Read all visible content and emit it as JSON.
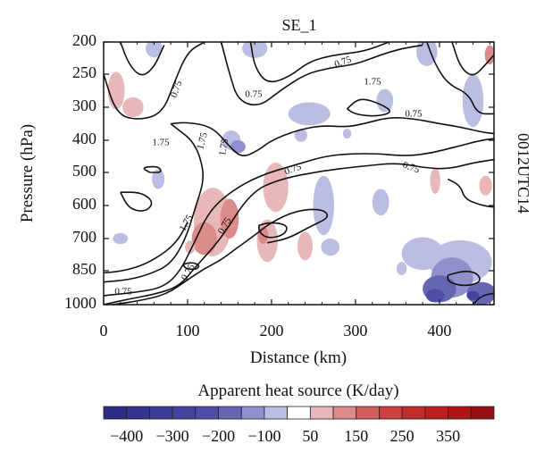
{
  "chart_data": {
    "type": "heatmap",
    "title": "SE_1",
    "side_label": "0012UTC14",
    "xlabel": "Distance (km)",
    "ylabel": "Pressure (hPa)",
    "xlim": [
      0,
      465
    ],
    "ylim": [
      200,
      1000
    ],
    "x_ticks": [
      0,
      100,
      200,
      300,
      400
    ],
    "y_ticks": [
      200,
      250,
      300,
      400,
      500,
      600,
      700,
      850,
      1000
    ],
    "contour_labels": [
      "0.75",
      "0.75",
      "1.75",
      "0.75",
      "1.75",
      "1.75",
      "1.75",
      "0.75",
      "0.75",
      "0.75",
      "1.75",
      "0.75",
      "0.75",
      "0.75"
    ],
    "colorbar": {
      "title": "Apparent heat source (K/day)",
      "tick_labels": [
        "−400",
        "−300",
        "−200",
        "−100",
        "50",
        "150",
        "250",
        "350"
      ],
      "colors": [
        "#2e2d86",
        "#35348e",
        "#3c3b96",
        "#44439e",
        "#4f4ea7",
        "#6766b5",
        "#8f8fcb",
        "#bcbde2",
        "#ffffff",
        "#e8b8b8",
        "#dc8a8a",
        "#d25f5f",
        "#cb4040",
        "#c42b2b",
        "#bd1f1f",
        "#ad1717",
        "#951111"
      ]
    },
    "field_patches": [
      {
        "x": 15,
        "p": 275,
        "w": 20,
        "h": 60,
        "color": "#e8b8b8"
      },
      {
        "x": 35,
        "p": 300,
        "w": 25,
        "h": 40,
        "color": "#e8b8b8"
      },
      {
        "x": 60,
        "p": 210,
        "w": 20,
        "h": 35,
        "color": "#bcbde2"
      },
      {
        "x": 180,
        "p": 210,
        "w": 30,
        "h": 40,
        "color": "#bcbde2"
      },
      {
        "x": 245,
        "p": 320,
        "w": 50,
        "h": 60,
        "color": "#bcbde2"
      },
      {
        "x": 335,
        "p": 290,
        "w": 20,
        "h": 40,
        "color": "#bcbde2"
      },
      {
        "x": 385,
        "p": 215,
        "w": 25,
        "h": 60,
        "color": "#bcbde2"
      },
      {
        "x": 440,
        "p": 290,
        "w": 25,
        "h": 100,
        "color": "#bcbde2"
      },
      {
        "x": 460,
        "p": 220,
        "w": 12,
        "h": 30,
        "color": "#dc8a8a"
      },
      {
        "x": 152,
        "p": 400,
        "w": 22,
        "h": 60,
        "color": "#bcbde2"
      },
      {
        "x": 160,
        "p": 420,
        "w": 18,
        "h": 40,
        "color": "#8f8fcb"
      },
      {
        "x": 235,
        "p": 385,
        "w": 15,
        "h": 40,
        "color": "#bcbde2"
      },
      {
        "x": 290,
        "p": 380,
        "w": 10,
        "h": 30,
        "color": "#bcbde2"
      },
      {
        "x": 65,
        "p": 520,
        "w": 15,
        "h": 60,
        "color": "#bcbde2"
      },
      {
        "x": 205,
        "p": 545,
        "w": 30,
        "h": 150,
        "color": "#e8b8b8"
      },
      {
        "x": 262,
        "p": 600,
        "w": 25,
        "h": 180,
        "color": "#bcbde2"
      },
      {
        "x": 330,
        "p": 590,
        "w": 20,
        "h": 80,
        "color": "#bcbde2"
      },
      {
        "x": 395,
        "p": 525,
        "w": 12,
        "h": 80,
        "color": "#e8b8b8"
      },
      {
        "x": 455,
        "p": 540,
        "w": 15,
        "h": 60,
        "color": "#e8b8b8"
      },
      {
        "x": 130,
        "p": 650,
        "w": 45,
        "h": 230,
        "color": "#e8b8b8"
      },
      {
        "x": 120,
        "p": 700,
        "w": 30,
        "h": 120,
        "color": "#dc8a8a"
      },
      {
        "x": 150,
        "p": 640,
        "w": 22,
        "h": 120,
        "color": "#dc8a8a"
      },
      {
        "x": 103,
        "p": 740,
        "w": 12,
        "h": 60,
        "color": "#e8b8b8"
      },
      {
        "x": 195,
        "p": 710,
        "w": 25,
        "h": 160,
        "color": "#e8b8b8"
      },
      {
        "x": 190,
        "p": 690,
        "w": 12,
        "h": 60,
        "color": "#dc8a8a"
      },
      {
        "x": 240,
        "p": 735,
        "w": 18,
        "h": 120,
        "color": "#e8b8b8"
      },
      {
        "x": 270,
        "p": 740,
        "w": 22,
        "h": 80,
        "color": "#bcbde2"
      },
      {
        "x": 20,
        "p": 700,
        "w": 18,
        "h": 40,
        "color": "#bcbde2"
      },
      {
        "x": 380,
        "p": 770,
        "w": 50,
        "h": 150,
        "color": "#bcbde2"
      },
      {
        "x": 425,
        "p": 810,
        "w": 75,
        "h": 200,
        "color": "#bcbde2"
      },
      {
        "x": 415,
        "p": 880,
        "w": 50,
        "h": 180,
        "color": "#8f8fcb"
      },
      {
        "x": 400,
        "p": 930,
        "w": 40,
        "h": 120,
        "color": "#6766b5"
      },
      {
        "x": 395,
        "p": 960,
        "w": 22,
        "h": 60,
        "color": "#4f4ea7"
      },
      {
        "x": 450,
        "p": 950,
        "w": 35,
        "h": 100,
        "color": "#6766b5"
      },
      {
        "x": 440,
        "p": 960,
        "w": 15,
        "h": 40,
        "color": "#44439e"
      },
      {
        "x": 355,
        "p": 840,
        "w": 12,
        "h": 60,
        "color": "#bcbde2"
      }
    ],
    "contour_lines": [
      [
        [
          0,
          1000
        ],
        [
          30,
          975
        ],
        [
          60,
          955
        ],
        [
          90,
          920
        ],
        [
          110,
          830
        ],
        [
          140,
          700
        ],
        [
          175,
          560
        ],
        [
          210,
          520
        ],
        [
          260,
          495
        ],
        [
          310,
          480
        ],
        [
          350,
          470
        ],
        [
          380,
          485
        ],
        [
          410,
          490
        ],
        [
          440,
          470
        ],
        [
          465,
          460
        ]
      ],
      [
        [
          0,
          960
        ],
        [
          40,
          945
        ],
        [
          70,
          925
        ],
        [
          90,
          860
        ],
        [
          108,
          720
        ],
        [
          125,
          620
        ],
        [
          150,
          560
        ],
        [
          185,
          510
        ],
        [
          230,
          475
        ],
        [
          270,
          445
        ],
        [
          320,
          440
        ],
        [
          360,
          450
        ],
        [
          390,
          440
        ],
        [
          420,
          420
        ],
        [
          450,
          400
        ],
        [
          465,
          395
        ]
      ],
      [
        [
          0,
          900
        ],
        [
          30,
          890
        ],
        [
          55,
          865
        ],
        [
          80,
          820
        ],
        [
          98,
          700
        ],
        [
          110,
          600
        ],
        [
          120,
          520
        ],
        [
          115,
          450
        ],
        [
          105,
          400
        ],
        [
          90,
          370
        ],
        [
          80,
          350
        ]
      ],
      [
        [
          80,
          350
        ],
        [
          100,
          345
        ],
        [
          130,
          360
        ],
        [
          150,
          420
        ],
        [
          165,
          455
        ],
        [
          185,
          430
        ],
        [
          200,
          400
        ],
        [
          230,
          370
        ],
        [
          260,
          355
        ],
        [
          290,
          360
        ],
        [
          310,
          350
        ],
        [
          340,
          330
        ],
        [
          370,
          335
        ],
        [
          400,
          350
        ],
        [
          425,
          360
        ],
        [
          450,
          375
        ],
        [
          465,
          380
        ]
      ],
      [
        [
          0,
          250
        ],
        [
          15,
          320
        ],
        [
          40,
          340
        ],
        [
          70,
          320
        ],
        [
          85,
          260
        ],
        [
          100,
          215
        ],
        [
          120,
          200
        ]
      ],
      [
        [
          20,
          200
        ],
        [
          30,
          235
        ],
        [
          45,
          255
        ],
        [
          60,
          240
        ],
        [
          72,
          205
        ]
      ],
      [
        [
          140,
          200
        ],
        [
          150,
          250
        ],
        [
          160,
          290
        ],
        [
          185,
          300
        ],
        [
          210,
          275
        ],
        [
          240,
          250
        ],
        [
          270,
          240
        ],
        [
          300,
          235
        ],
        [
          330,
          220
        ],
        [
          355,
          210
        ],
        [
          380,
          205
        ]
      ],
      [
        [
          175,
          200
        ],
        [
          180,
          240
        ],
        [
          195,
          265
        ],
        [
          220,
          255
        ],
        [
          245,
          230
        ],
        [
          275,
          220
        ],
        [
          310,
          215
        ],
        [
          340,
          200
        ]
      ],
      [
        [
          385,
          200
        ],
        [
          395,
          235
        ],
        [
          410,
          265
        ],
        [
          435,
          280
        ],
        [
          445,
          320
        ],
        [
          465,
          320
        ]
      ],
      [
        [
          415,
          200
        ],
        [
          425,
          240
        ],
        [
          440,
          255
        ],
        [
          455,
          235
        ],
        [
          465,
          220
        ]
      ],
      [
        [
          290,
          305
        ],
        [
          305,
          285
        ],
        [
          330,
          295
        ],
        [
          345,
          315
        ],
        [
          325,
          328
        ],
        [
          300,
          322
        ],
        [
          290,
          305
        ]
      ],
      [
        [
          55,
          500
        ],
        [
          45,
          485
        ],
        [
          65,
          480
        ],
        [
          70,
          500
        ],
        [
          55,
          500
        ]
      ],
      [
        [
          10,
          1000
        ],
        [
          40,
          985
        ],
        [
          75,
          955
        ],
        [
          100,
          890
        ],
        [
          120,
          840
        ],
        [
          140,
          800
        ],
        [
          160,
          740
        ],
        [
          180,
          690
        ],
        [
          200,
          650
        ],
        [
          230,
          615
        ],
        [
          260,
          610
        ],
        [
          270,
          635
        ],
        [
          245,
          665
        ],
        [
          220,
          700
        ],
        [
          195,
          720
        ]
      ],
      [
        [
          0,
          860
        ],
        [
          25,
          850
        ],
        [
          50,
          820
        ],
        [
          75,
          760
        ],
        [
          90,
          700
        ],
        [
          100,
          650
        ]
      ],
      [
        [
          20,
          560
        ],
        [
          30,
          610
        ],
        [
          50,
          620
        ],
        [
          60,
          590
        ],
        [
          45,
          560
        ],
        [
          20,
          560
        ]
      ],
      [
        [
          185,
          660
        ],
        [
          200,
          650
        ],
        [
          220,
          660
        ],
        [
          215,
          690
        ],
        [
          195,
          700
        ],
        [
          185,
          680
        ],
        [
          185,
          660
        ]
      ],
      [
        [
          410,
          520
        ],
        [
          425,
          540
        ],
        [
          430,
          580
        ],
        [
          450,
          600
        ],
        [
          465,
          605
        ]
      ],
      [
        [
          410,
          870
        ],
        [
          430,
          850
        ],
        [
          445,
          860
        ],
        [
          450,
          900
        ],
        [
          430,
          920
        ],
        [
          410,
          900
        ],
        [
          410,
          870
        ]
      ],
      [
        [
          95,
          820
        ],
        [
          105,
          810
        ],
        [
          115,
          825
        ],
        [
          110,
          845
        ],
        [
          97,
          840
        ],
        [
          95,
          820
        ]
      ],
      [
        [
          440,
          1000
        ],
        [
          450,
          960
        ],
        [
          465,
          950
        ]
      ]
    ]
  }
}
